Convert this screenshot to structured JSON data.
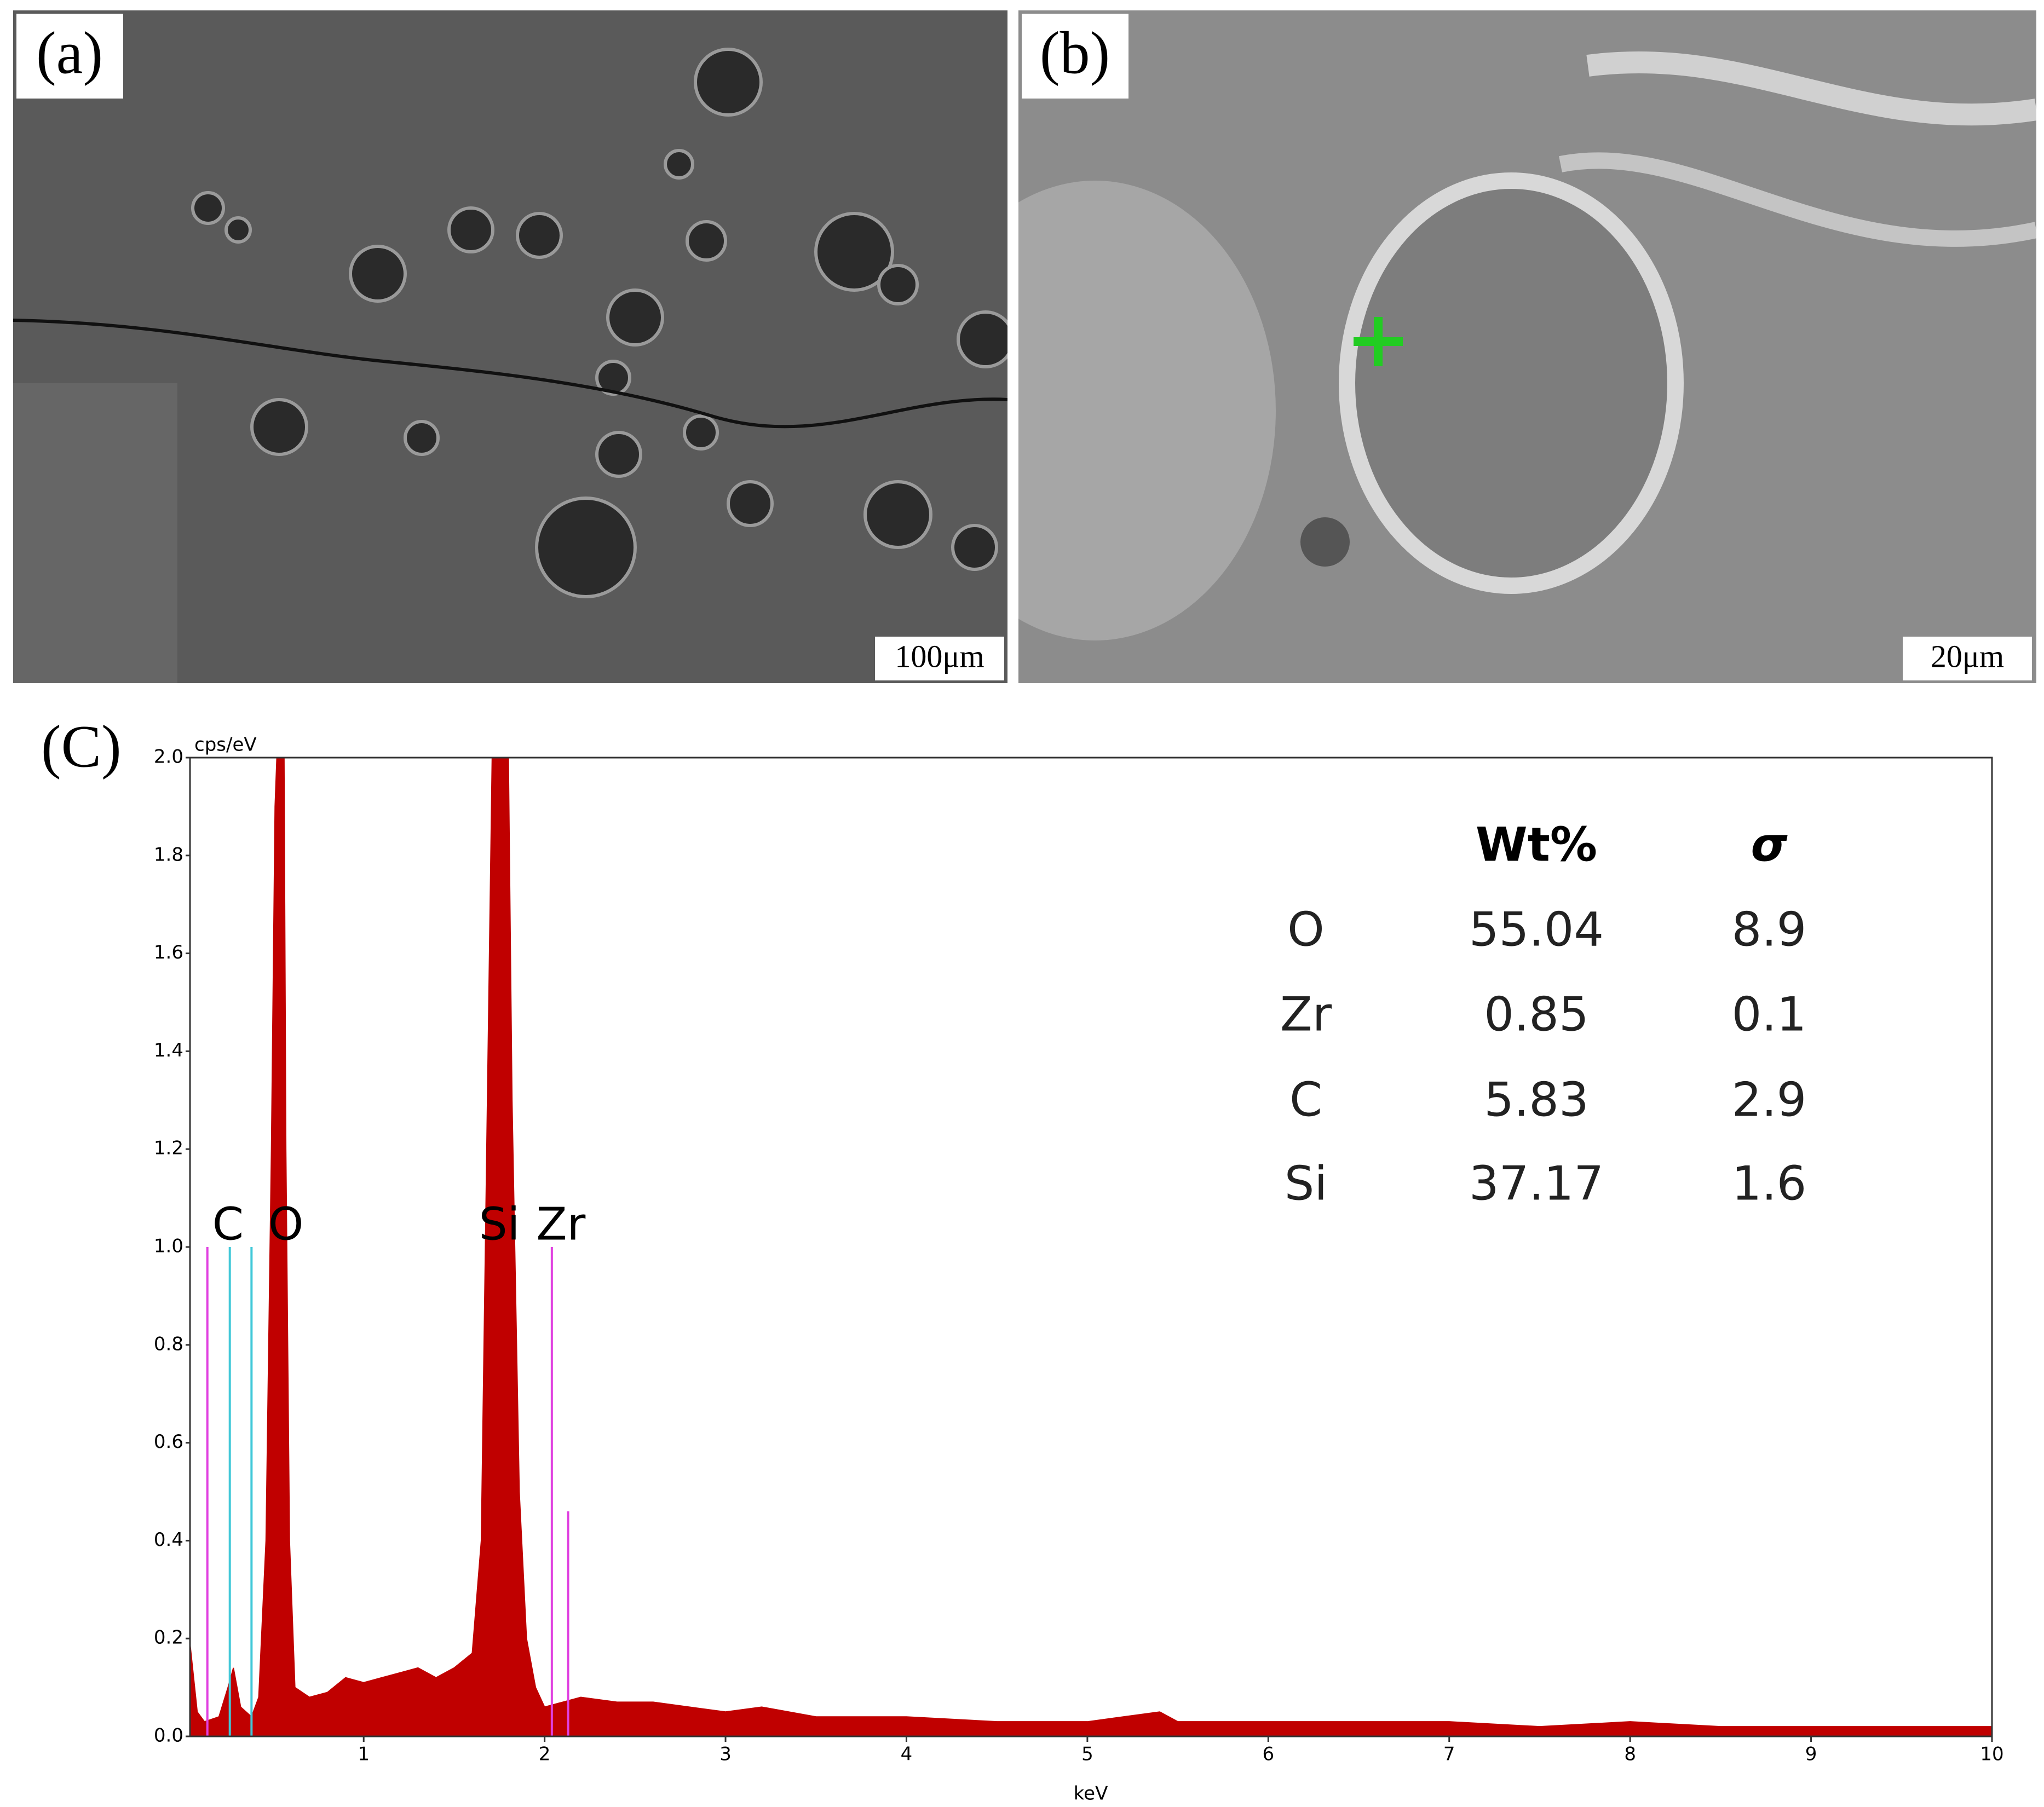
{
  "panels": {
    "a": {
      "label": "(a)",
      "scale_bar": "100μm"
    },
    "b": {
      "label": "(b)",
      "scale_bar": "20μm"
    },
    "c": {
      "label": "(C)"
    }
  },
  "chart_data": {
    "type": "area",
    "y_label": "cps/eV",
    "x_label": "keV",
    "color": "#c00000",
    "x": [
      0.04,
      0.08,
      0.12,
      0.2,
      0.25,
      0.28,
      0.32,
      0.38,
      0.42,
      0.46,
      0.49,
      0.51,
      0.52,
      0.56,
      0.57,
      0.59,
      0.62,
      0.7,
      0.8,
      0.9,
      1.0,
      1.1,
      1.2,
      1.3,
      1.4,
      1.5,
      1.6,
      1.65,
      1.68,
      1.71,
      1.8,
      1.82,
      1.86,
      1.9,
      1.95,
      2.0,
      2.1,
      2.2,
      2.4,
      2.6,
      2.8,
      3.0,
      3.2,
      3.5,
      4.0,
      4.5,
      5.0,
      5.4,
      5.5,
      6.0,
      6.5,
      7.0,
      7.5,
      8.0,
      8.5,
      9.0,
      9.5,
      10
    ],
    "values": [
      0.19,
      0.05,
      0.03,
      0.04,
      0.1,
      0.14,
      0.06,
      0.04,
      0.08,
      0.4,
      1.2,
      1.9,
      2.0,
      2.0,
      1.2,
      0.4,
      0.1,
      0.08,
      0.09,
      0.12,
      0.11,
      0.12,
      0.13,
      0.14,
      0.12,
      0.14,
      0.17,
      0.4,
      1.2,
      2.0,
      2.0,
      1.3,
      0.5,
      0.2,
      0.1,
      0.06,
      0.07,
      0.08,
      0.07,
      0.07,
      0.06,
      0.05,
      0.06,
      0.04,
      0.04,
      0.03,
      0.03,
      0.05,
      0.03,
      0.03,
      0.03,
      0.03,
      0.02,
      0.03,
      0.02,
      0.02,
      0.02,
      0.02
    ],
    "xlim": [
      0.04,
      10
    ],
    "xticks": [
      1,
      2,
      3,
      4,
      5,
      6,
      7,
      8,
      9,
      10
    ],
    "ylim": [
      0,
      2
    ],
    "yticks": [
      {
        "value": 0,
        "label": "0.0"
      },
      0.2,
      0.4,
      0.6,
      0.8,
      {
        "value": 1,
        "label": "1.0"
      },
      1.2,
      1.4,
      1.6,
      1.8,
      {
        "value": 2,
        "label": "2.0"
      }
    ],
    "markers": [
      {
        "x": 0.136,
        "height": 1.0,
        "color": "#e040e0"
      },
      {
        "x": 0.26,
        "height": 1.0,
        "color": "#40c8d8"
      },
      {
        "x": 0.38,
        "height": 1.0,
        "color": "#40c8d8"
      },
      {
        "x": 2.04,
        "height": 1.0,
        "color": "#e040e0"
      },
      {
        "x": 2.13,
        "height": 0.46,
        "color": "#e040e0"
      }
    ],
    "element_labels": [
      {
        "text": "C",
        "x": 0.25
      },
      {
        "text": "O",
        "x": 0.57
      },
      {
        "text": "Si",
        "x": 1.75
      },
      {
        "text": "Zr",
        "x": 2.09
      }
    ]
  },
  "table": {
    "header": [
      "Wt%",
      "σ"
    ],
    "rows": [
      [
        "O",
        "55.04",
        "8.9"
      ],
      [
        "Zr",
        "0.85",
        "0.1"
      ],
      [
        "C",
        "5.83",
        "2.9"
      ],
      [
        "Si",
        "37.17",
        "1.6"
      ]
    ]
  }
}
